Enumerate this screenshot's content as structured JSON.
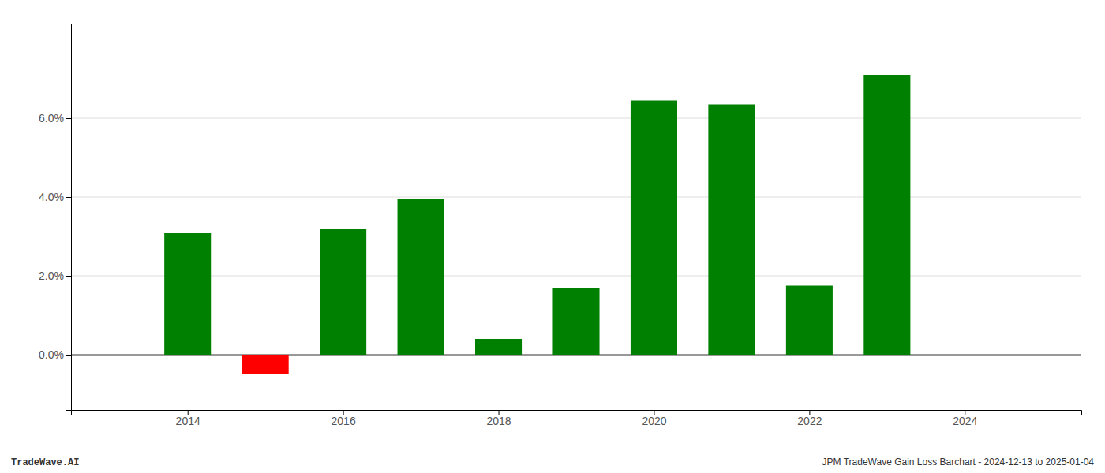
{
  "chart_data": {
    "type": "bar",
    "x": [
      2014,
      2015,
      2016,
      2017,
      2018,
      2019,
      2020,
      2021,
      2022,
      2023
    ],
    "values": [
      0.031,
      -0.005,
      0.032,
      0.0395,
      0.004,
      0.017,
      0.0645,
      0.0635,
      0.0175,
      0.071
    ],
    "colors": [
      "#008000",
      "#ff0000",
      "#008000",
      "#008000",
      "#008000",
      "#008000",
      "#008000",
      "#008000",
      "#008000",
      "#008000"
    ],
    "xlim": [
      2012.5,
      2025.5
    ],
    "ylim": [
      -0.014,
      0.084
    ],
    "xticks": [
      2014,
      2016,
      2018,
      2020,
      2022,
      2024
    ],
    "yticks": [
      {
        "value": 0.0,
        "label": "0.0%"
      },
      {
        "value": 0.02,
        "label": "2.0%"
      },
      {
        "value": 0.04,
        "label": "4.0%"
      },
      {
        "value": 0.06,
        "label": "6.0%"
      }
    ],
    "grid": true,
    "annotations": [
      "TradeWave.AI",
      "JPM TradeWave Gain Loss Barchart - 2024-12-13 to 2025-01-04"
    ]
  }
}
